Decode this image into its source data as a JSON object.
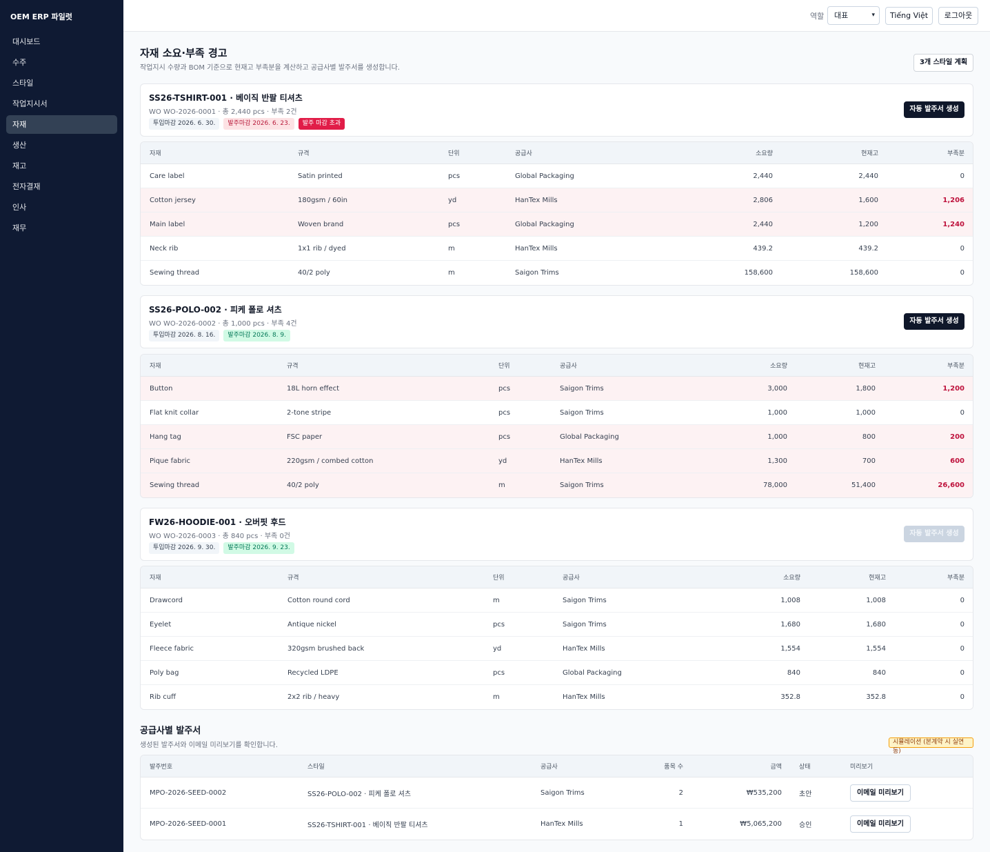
{
  "app": {
    "brand": "OEM ERP 파일럿"
  },
  "sidebar": {
    "items": [
      {
        "label": "대시보드",
        "active": false
      },
      {
        "label": "수주",
        "active": false
      },
      {
        "label": "스타일",
        "active": false
      },
      {
        "label": "작업지시서",
        "active": false
      },
      {
        "label": "자재",
        "active": true
      },
      {
        "label": "생산",
        "active": false
      },
      {
        "label": "재고",
        "active": false
      },
      {
        "label": "전자결재",
        "active": false
      },
      {
        "label": "인사",
        "active": false
      },
      {
        "label": "재무",
        "active": false
      }
    ]
  },
  "topbar": {
    "role_label": "역할",
    "role_value": "대표",
    "lang_button": "Tiếng Việt",
    "logout_button": "로그아웃"
  },
  "page": {
    "title": "자재 소요·부족 경고",
    "subtitle": "작업지시 수량과 BOM 기준으로 현재고 부족분을 계산하고 공급사별 발주서를 생성합니다.",
    "plan_badge": "3개 스타일 계획"
  },
  "columns": {
    "material": "자재",
    "spec": "규격",
    "unit": "단위",
    "supplier": "공급사",
    "required": "소요량",
    "stock": "현재고",
    "shortage": "부족분"
  },
  "plans": [
    {
      "title": "SS26-TSHIRT-001 · 베이직 반팔 티셔츠",
      "meta": "WO WO-2026-0001 · 총 2,440 pcs · 부족 2건",
      "pills": [
        {
          "text": "투입마감 2026. 6. 30.",
          "style": "gray"
        },
        {
          "text": "발주마감 2026. 6. 23.",
          "style": "pink"
        },
        {
          "text": "발주 마감 초과",
          "style": "red"
        }
      ],
      "button": "자동 발주서 생성",
      "button_disabled": false,
      "rows": [
        {
          "material": "Care label",
          "spec": "Satin printed",
          "unit": "pcs",
          "supplier": "Global Packaging",
          "required": "2,440",
          "stock": "2,440",
          "shortage": "0",
          "short": false
        },
        {
          "material": "Cotton jersey",
          "spec": "180gsm / 60in",
          "unit": "yd",
          "supplier": "HanTex Mills",
          "required": "2,806",
          "stock": "1,600",
          "shortage": "1,206",
          "short": true
        },
        {
          "material": "Main label",
          "spec": "Woven brand",
          "unit": "pcs",
          "supplier": "Global Packaging",
          "required": "2,440",
          "stock": "1,200",
          "shortage": "1,240",
          "short": true
        },
        {
          "material": "Neck rib",
          "spec": "1x1 rib / dyed",
          "unit": "m",
          "supplier": "HanTex Mills",
          "required": "439.2",
          "stock": "439.2",
          "shortage": "0",
          "short": false
        },
        {
          "material": "Sewing thread",
          "spec": "40/2 poly",
          "unit": "m",
          "supplier": "Saigon Trims",
          "required": "158,600",
          "stock": "158,600",
          "shortage": "0",
          "short": false
        }
      ]
    },
    {
      "title": "SS26-POLO-002 · 피케 폴로 셔츠",
      "meta": "WO WO-2026-0002 · 총 1,000 pcs · 부족 4건",
      "pills": [
        {
          "text": "투입마감 2026. 8. 16.",
          "style": "gray"
        },
        {
          "text": "발주마감 2026. 8. 9.",
          "style": "green"
        }
      ],
      "button": "자동 발주서 생성",
      "button_disabled": false,
      "rows": [
        {
          "material": "Button",
          "spec": "18L horn effect",
          "unit": "pcs",
          "supplier": "Saigon Trims",
          "required": "3,000",
          "stock": "1,800",
          "shortage": "1,200",
          "short": true
        },
        {
          "material": "Flat knit collar",
          "spec": "2-tone stripe",
          "unit": "pcs",
          "supplier": "Saigon Trims",
          "required": "1,000",
          "stock": "1,000",
          "shortage": "0",
          "short": false
        },
        {
          "material": "Hang tag",
          "spec": "FSC paper",
          "unit": "pcs",
          "supplier": "Global Packaging",
          "required": "1,000",
          "stock": "800",
          "shortage": "200",
          "short": true
        },
        {
          "material": "Pique fabric",
          "spec": "220gsm / combed cotton",
          "unit": "yd",
          "supplier": "HanTex Mills",
          "required": "1,300",
          "stock": "700",
          "shortage": "600",
          "short": true
        },
        {
          "material": "Sewing thread",
          "spec": "40/2 poly",
          "unit": "m",
          "supplier": "Saigon Trims",
          "required": "78,000",
          "stock": "51,400",
          "shortage": "26,600",
          "short": true
        }
      ]
    },
    {
      "title": "FW26-HOODIE-001 · 오버핏 후드",
      "meta": "WO WO-2026-0003 · 총 840 pcs · 부족 0건",
      "pills": [
        {
          "text": "투입마감 2026. 9. 30.",
          "style": "gray"
        },
        {
          "text": "발주마감 2026. 9. 23.",
          "style": "green"
        }
      ],
      "button": "자동 발주서 생성",
      "button_disabled": true,
      "rows": [
        {
          "material": "Drawcord",
          "spec": "Cotton round cord",
          "unit": "m",
          "supplier": "Saigon Trims",
          "required": "1,008",
          "stock": "1,008",
          "shortage": "0",
          "short": false
        },
        {
          "material": "Eyelet",
          "spec": "Antique nickel",
          "unit": "pcs",
          "supplier": "Saigon Trims",
          "required": "1,680",
          "stock": "1,680",
          "shortage": "0",
          "short": false
        },
        {
          "material": "Fleece fabric",
          "spec": "320gsm brushed back",
          "unit": "yd",
          "supplier": "HanTex Mills",
          "required": "1,554",
          "stock": "1,554",
          "shortage": "0",
          "short": false
        },
        {
          "material": "Poly bag",
          "spec": "Recycled LDPE",
          "unit": "pcs",
          "supplier": "Global Packaging",
          "required": "840",
          "stock": "840",
          "shortage": "0",
          "short": false
        },
        {
          "material": "Rib cuff",
          "spec": "2x2 rib / heavy",
          "unit": "m",
          "supplier": "HanTex Mills",
          "required": "352.8",
          "stock": "352.8",
          "shortage": "0",
          "short": false
        }
      ]
    }
  ],
  "po_section": {
    "title": "공급사별 발주서",
    "subtitle": "생성된 발주서와 이메일 미리보기를 확인합니다.",
    "badge": "시뮬레이션 (본계약 시 실연동)",
    "columns": {
      "po_no": "발주번호",
      "style": "스타일",
      "supplier": "공급사",
      "items": "품목 수",
      "amount": "금액",
      "status": "상태",
      "preview": "미리보기"
    },
    "rows": [
      {
        "po_no": "MPO-2026-SEED-0002",
        "style": "SS26-POLO-002 · 피케 폴로 셔츠",
        "supplier": "Saigon Trims",
        "items": "2",
        "amount": "₩535,200",
        "status": "초안",
        "preview": "이메일 미리보기"
      },
      {
        "po_no": "MPO-2026-SEED-0001",
        "style": "SS26-TSHIRT-001 · 베이직 반팔 티셔츠",
        "supplier": "HanTex Mills",
        "items": "1",
        "amount": "₩5,065,200",
        "status": "승인",
        "preview": "이메일 미리보기"
      }
    ]
  },
  "colors": {
    "sidebar_bg": "#0f1a33",
    "shortage_text": "#be123c",
    "short_row_bg": "#fdf2f3",
    "primary_button": "#0f172a"
  }
}
